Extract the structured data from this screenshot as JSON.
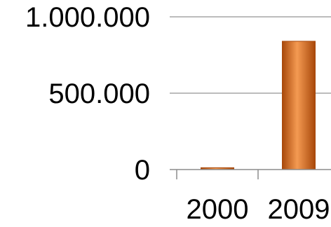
{
  "chart_data": {
    "type": "bar",
    "categories": [
      "2000",
      "2009"
    ],
    "series": [
      {
        "values": [
          12000,
          840000
        ]
      }
    ],
    "y_tick_labels": [
      "0",
      "500.000",
      "1.000.000"
    ],
    "y_ticks": [
      0,
      500000,
      1000000
    ],
    "ylim": [
      0,
      1000000
    ],
    "grid": true,
    "bar_color": "#e8731f",
    "bar_color_light": "#f49a52",
    "bar_color_dark": "#a8480a"
  }
}
